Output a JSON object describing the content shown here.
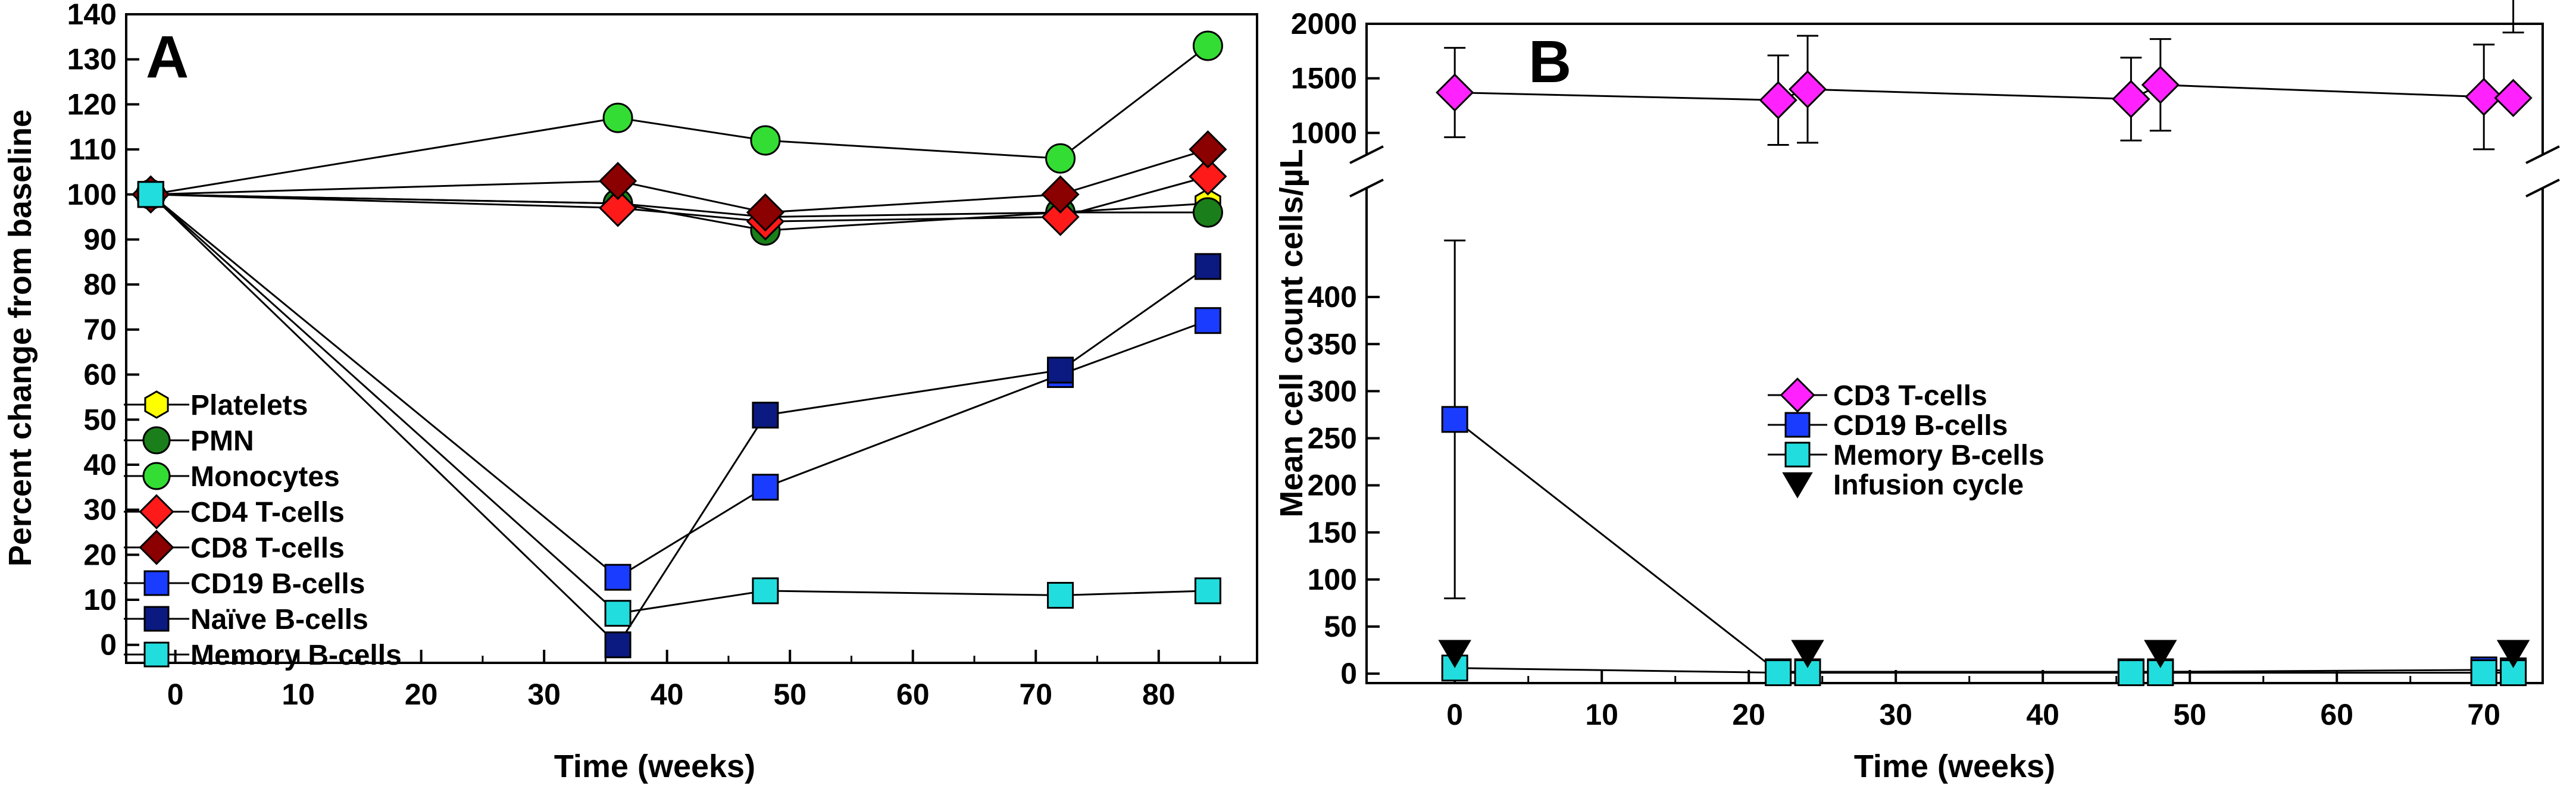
{
  "colors": {
    "platelets": "#ffff00",
    "pmn": "#1a7f1a",
    "monocytes": "#33dd33",
    "cd4": "#ff1a1a",
    "cd8": "#8b0000",
    "cd19": "#1a3cff",
    "naive": "#0a1a80",
    "memory": "#22dddd",
    "cd3": "#ff22ff",
    "infusion": "#000000"
  },
  "chart_data": [
    {
      "type": "line",
      "panel": "A",
      "title": "",
      "xlabel": "Time (weeks)",
      "ylabel": "Percent change from baseline",
      "xlim": [
        -4,
        88
      ],
      "ylim": [
        -4,
        140
      ],
      "xticks": [
        0,
        10,
        20,
        30,
        40,
        50,
        60,
        70,
        80
      ],
      "xtick_labels": [
        "0",
        "10",
        "20",
        "30",
        "40",
        "50",
        "60",
        "70",
        "80"
      ],
      "yticks": [
        0,
        10,
        20,
        30,
        40,
        50,
        60,
        70,
        80,
        90,
        100,
        110,
        120,
        130,
        140
      ],
      "ytick_labels": [
        "0",
        "10",
        "20",
        "30",
        "40",
        "50",
        "60",
        "70",
        "80",
        "90",
        "100",
        "110",
        "120",
        "130",
        "140"
      ],
      "legend_position": "bottom-left",
      "series": [
        {
          "key": "platelets",
          "name": "Platelets",
          "marker": "hexagon",
          "x": [
            -2,
            36,
            48,
            72,
            84
          ],
          "y": [
            100,
            98,
            95,
            96,
            98
          ]
        },
        {
          "key": "pmn",
          "name": "PMN",
          "marker": "circle",
          "x": [
            -2,
            36,
            48,
            72,
            84
          ],
          "y": [
            100,
            98,
            92,
            96,
            96
          ]
        },
        {
          "key": "monocytes",
          "name": "Monocytes",
          "marker": "circle",
          "x": [
            -2,
            36,
            48,
            72,
            84
          ],
          "y": [
            100,
            117,
            112,
            108,
            133
          ]
        },
        {
          "key": "cd4",
          "name": "CD4 T-cells",
          "marker": "diamond",
          "x": [
            -2,
            36,
            48,
            72,
            84
          ],
          "y": [
            100,
            97,
            94,
            95,
            104
          ]
        },
        {
          "key": "cd8",
          "name": "CD8 T-cells",
          "marker": "diamond",
          "x": [
            -2,
            36,
            48,
            72,
            84
          ],
          "y": [
            100,
            103,
            96,
            100,
            110
          ]
        },
        {
          "key": "cd19",
          "name": "CD19 B-cells",
          "marker": "square",
          "x": [
            -2,
            36,
            48,
            72,
            84
          ],
          "y": [
            100,
            15,
            35,
            60,
            72
          ]
        },
        {
          "key": "naive",
          "name": "Naïve B-cells",
          "marker": "square",
          "x": [
            -2,
            36,
            48,
            72,
            84
          ],
          "y": [
            100,
            0,
            51,
            61,
            84
          ]
        },
        {
          "key": "memory",
          "name": "Memory B-cells",
          "marker": "square",
          "x": [
            -2,
            36,
            48,
            72,
            84
          ],
          "y": [
            100,
            7,
            12,
            11,
            12
          ]
        }
      ]
    },
    {
      "type": "line",
      "panel": "B",
      "title": "",
      "xlabel": "Time (weeks)",
      "ylabel": "Mean cell count cells/µL",
      "xlim": [
        -6,
        74
      ],
      "ylim_lower": [
        -10,
        450
      ],
      "ylim_upper": [
        800,
        2000
      ],
      "broken_axis": true,
      "xticks": [
        0,
        10,
        20,
        30,
        40,
        50,
        60,
        70
      ],
      "xtick_labels": [
        "0",
        "10",
        "20",
        "30",
        "40",
        "50",
        "60",
        "70"
      ],
      "yticks_lower": [
        0,
        50,
        100,
        150,
        200,
        250,
        300,
        350,
        400
      ],
      "ytick_labels_lower": [
        "0",
        "50",
        "100",
        "150",
        "200",
        "250",
        "300",
        "350",
        "400"
      ],
      "yticks_upper": [
        1000,
        1500,
        2000
      ],
      "ytick_labels_upper": [
        "1000",
        "1500",
        "2000"
      ],
      "legend_position": "center",
      "series": [
        {
          "key": "cd3",
          "name": "CD3 T-cells",
          "marker": "diamond",
          "x": [
            0,
            22,
            24,
            46,
            48,
            70,
            72
          ],
          "y": [
            1370,
            1300,
            1400,
            1310,
            1440,
            1330,
            1320
          ],
          "error": [
            410,
            410,
            490,
            380,
            420,
            480,
            600
          ]
        },
        {
          "key": "cd19",
          "name": "CD19 B-cells",
          "marker": "square",
          "x": [
            0,
            22,
            24,
            46,
            48,
            70,
            72
          ],
          "y": [
            270,
            2,
            2,
            2,
            2,
            4,
            3
          ],
          "error": [
            190,
            10,
            0,
            0,
            0,
            10,
            0
          ]
        },
        {
          "key": "memory",
          "name": "Memory B-cells",
          "marker": "square",
          "x": [
            0,
            22,
            24,
            46,
            48,
            70,
            72
          ],
          "y": [
            6,
            1,
            1,
            1,
            1,
            1,
            1
          ],
          "error": [
            0,
            0,
            0,
            0,
            0,
            0,
            0
          ]
        },
        {
          "key": "infusion",
          "name": "Infusion cycle",
          "marker": "triangle-down",
          "x": [
            0,
            24,
            48,
            72
          ],
          "y": [
            22,
            22,
            22,
            22
          ]
        }
      ]
    }
  ]
}
